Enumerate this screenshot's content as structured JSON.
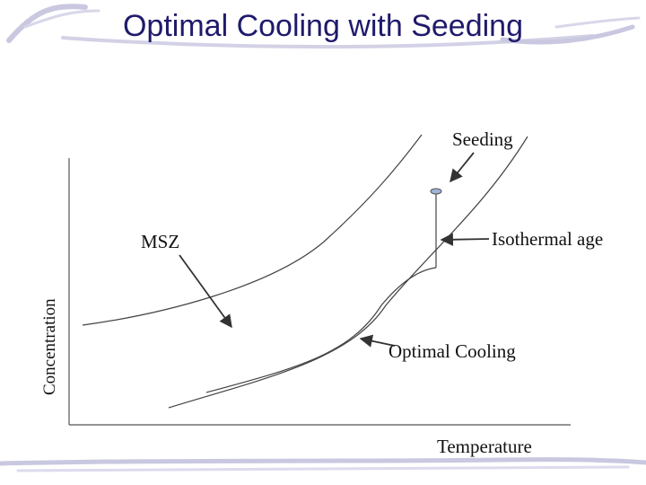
{
  "slide": {
    "title": "Optimal Cooling with Seeding"
  },
  "diagram": {
    "y_axis_label": "Concentration",
    "x_axis_label": "Temperature",
    "labels": {
      "seeding": "Seeding",
      "msz": "MSZ",
      "isothermal_age": "Isothermal age",
      "optimal_cooling": "Optimal Cooling"
    },
    "colors": {
      "title": "#1f1a6b",
      "decor": "#c9c8e0",
      "lines": "#333333"
    }
  }
}
